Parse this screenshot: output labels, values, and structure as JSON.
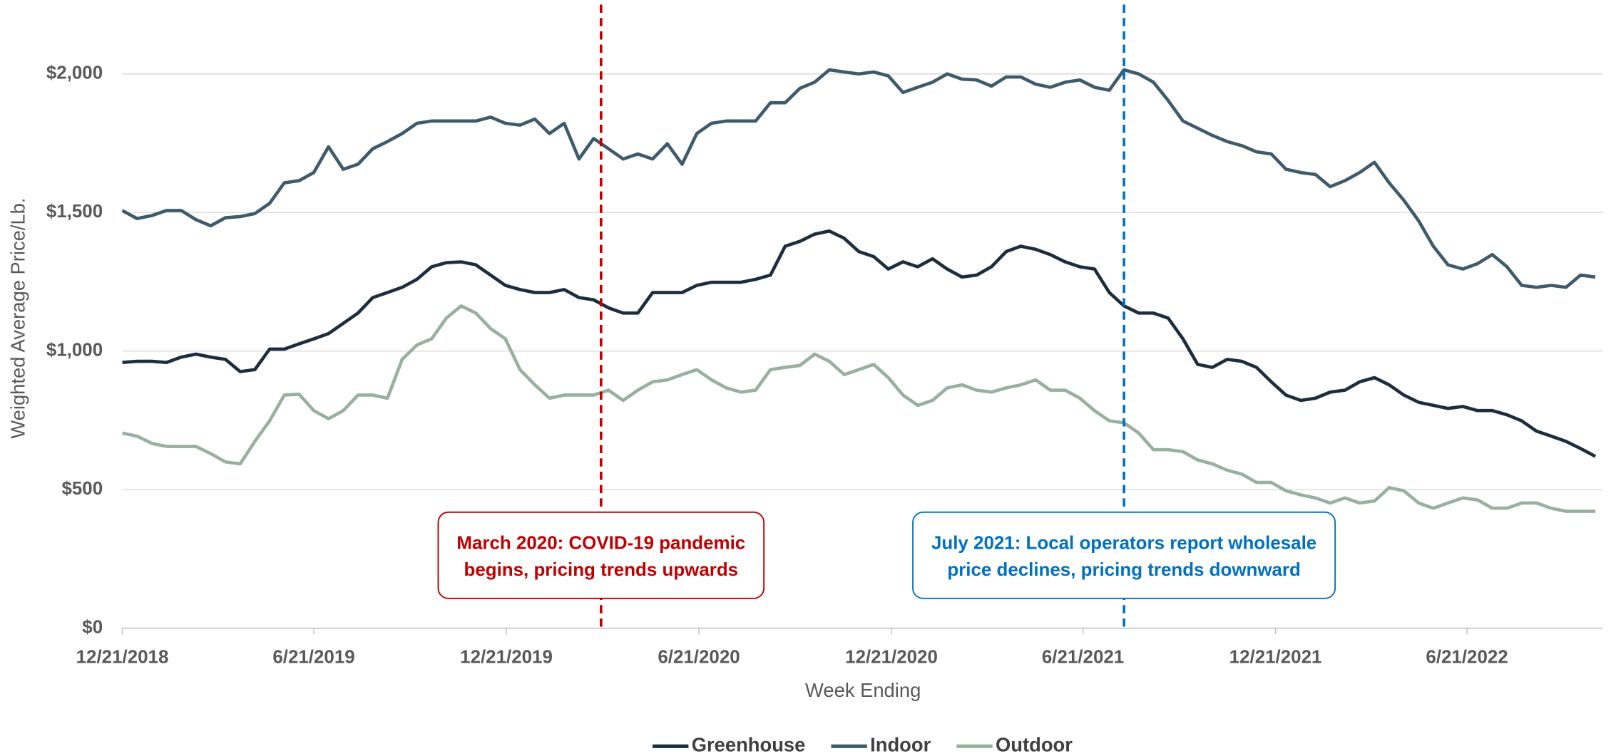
{
  "chart_data": {
    "type": "line",
    "x_label": "Week Ending",
    "y_label": "Weighted Average Price/Lb.",
    "x": [
      "2018-12-21",
      "2019-01-04",
      "2019-01-18",
      "2019-02-01",
      "2019-02-15",
      "2019-03-01",
      "2019-03-15",
      "2019-03-29",
      "2019-04-12",
      "2019-04-26",
      "2019-05-10",
      "2019-05-24",
      "2019-06-07",
      "2019-06-21",
      "2019-07-05",
      "2019-07-19",
      "2019-08-02",
      "2019-08-16",
      "2019-08-30",
      "2019-09-13",
      "2019-09-27",
      "2019-10-11",
      "2019-10-25",
      "2019-11-08",
      "2019-11-22",
      "2019-12-06",
      "2019-12-20",
      "2020-01-03",
      "2020-01-17",
      "2020-01-31",
      "2020-02-14",
      "2020-02-28",
      "2020-03-13",
      "2020-03-27",
      "2020-04-10",
      "2020-04-24",
      "2020-05-08",
      "2020-05-22",
      "2020-06-05",
      "2020-06-19",
      "2020-07-03",
      "2020-07-17",
      "2020-07-31",
      "2020-08-14",
      "2020-08-28",
      "2020-09-11",
      "2020-09-25",
      "2020-10-09",
      "2020-10-23",
      "2020-11-06",
      "2020-11-20",
      "2020-12-04",
      "2020-12-18",
      "2021-01-01",
      "2021-01-15",
      "2021-01-29",
      "2021-02-12",
      "2021-02-26",
      "2021-03-12",
      "2021-03-26",
      "2021-04-09",
      "2021-04-23",
      "2021-05-07",
      "2021-05-21",
      "2021-06-04",
      "2021-06-18",
      "2021-07-02",
      "2021-07-16",
      "2021-07-30",
      "2021-08-13",
      "2021-08-27",
      "2021-09-10",
      "2021-09-24",
      "2021-10-08",
      "2021-10-22",
      "2021-11-05",
      "2021-11-19",
      "2021-12-03",
      "2021-12-17",
      "2021-12-31",
      "2022-01-14",
      "2022-01-28",
      "2022-02-11",
      "2022-02-25",
      "2022-03-11",
      "2022-03-25",
      "2022-04-08",
      "2022-04-22",
      "2022-05-06",
      "2022-05-20",
      "2022-06-03",
      "2022-06-17",
      "2022-07-01",
      "2022-07-15",
      "2022-07-29",
      "2022-08-12",
      "2022-08-26",
      "2022-09-09",
      "2022-09-23",
      "2022-10-07",
      "2022-10-21"
    ],
    "series": [
      {
        "name": "Greenhouse",
        "color": "#1c2e3d",
        "values": [
          959,
          963,
          963,
          959,
          978,
          989,
          978,
          970,
          926,
          933,
          1007,
          1007,
          1026,
          1044,
          1063,
          1100,
          1137,
          1193,
          1211,
          1230,
          1259,
          1304,
          1319,
          1322,
          1311,
          1274,
          1237,
          1222,
          1211,
          1211,
          1222,
          1193,
          1185,
          1156,
          1137,
          1137,
          1211,
          1211,
          1211,
          1237,
          1248,
          1248,
          1248,
          1259,
          1274,
          1378,
          1396,
          1422,
          1433,
          1407,
          1359,
          1341,
          1296,
          1322,
          1304,
          1333,
          1296,
          1267,
          1274,
          1304,
          1359,
          1378,
          1367,
          1348,
          1322,
          1304,
          1296,
          1211,
          1163,
          1137,
          1137,
          1119,
          1044,
          952,
          941,
          970,
          963,
          941,
          889,
          841,
          822,
          830,
          852,
          859,
          889,
          904,
          878,
          841,
          815,
          804,
          793,
          800,
          785,
          785,
          770,
          748,
          711,
          693,
          674,
          648,
          620
        ]
      },
      {
        "name": "Indoor",
        "color": "#3e5a6b",
        "values": [
          1507,
          1478,
          1489,
          1507,
          1507,
          1474,
          1452,
          1481,
          1485,
          1496,
          1533,
          1607,
          1615,
          1644,
          1737,
          1656,
          1674,
          1730,
          1756,
          1785,
          1822,
          1830,
          1830,
          1830,
          1830,
          1844,
          1822,
          1815,
          1837,
          1785,
          1822,
          1693,
          1767,
          1730,
          1693,
          1711,
          1693,
          1748,
          1674,
          1785,
          1822,
          1830,
          1830,
          1830,
          1896,
          1896,
          1948,
          1970,
          2015,
          2007,
          2000,
          2007,
          1993,
          1933,
          1952,
          1970,
          2000,
          1981,
          1978,
          1956,
          1989,
          1989,
          1963,
          1952,
          1970,
          1978,
          1952,
          1941,
          2015,
          2000,
          1970,
          1904,
          1830,
          1804,
          1778,
          1756,
          1741,
          1719,
          1711,
          1656,
          1644,
          1637,
          1593,
          1615,
          1644,
          1681,
          1607,
          1544,
          1470,
          1378,
          1311,
          1296,
          1315,
          1348,
          1304,
          1237,
          1230,
          1237,
          1230,
          1274,
          1267
        ]
      },
      {
        "name": "Outdoor",
        "color": "#98b0a0",
        "values": [
          704,
          693,
          667,
          656,
          656,
          656,
          630,
          600,
          593,
          674,
          748,
          841,
          844,
          785,
          756,
          785,
          841,
          841,
          830,
          970,
          1022,
          1044,
          1119,
          1163,
          1137,
          1081,
          1044,
          933,
          878,
          830,
          841,
          841,
          841,
          859,
          822,
          859,
          889,
          896,
          915,
          933,
          896,
          867,
          852,
          859,
          933,
          941,
          948,
          989,
          963,
          915,
          933,
          952,
          904,
          841,
          804,
          822,
          867,
          878,
          859,
          852,
          867,
          878,
          896,
          859,
          859,
          830,
          785,
          748,
          741,
          704,
          644,
          644,
          637,
          607,
          593,
          570,
          556,
          526,
          526,
          496,
          481,
          470,
          452,
          470,
          452,
          459,
          507,
          496,
          452,
          433,
          452,
          470,
          463,
          433,
          433,
          452,
          452,
          433,
          422,
          422,
          422
        ]
      }
    ],
    "xlim": [
      "2018-12-21",
      "2022-10-28"
    ],
    "xticks": [
      {
        "value": "2018-12-21",
        "label": "12/21/2018"
      },
      {
        "value": "2019-06-21",
        "label": "6/21/2019"
      },
      {
        "value": "2019-12-21",
        "label": "12/21/2019"
      },
      {
        "value": "2020-06-21",
        "label": "6/21/2020"
      },
      {
        "value": "2020-12-21",
        "label": "12/21/2020"
      },
      {
        "value": "2021-06-21",
        "label": "6/21/2021"
      },
      {
        "value": "2021-12-21",
        "label": "12/21/2021"
      },
      {
        "value": "2022-06-21",
        "label": "6/21/2022"
      }
    ],
    "ylim": [
      0,
      2250
    ],
    "yticks": [
      {
        "value": 0,
        "label": "$0"
      },
      {
        "value": 500,
        "label": "$500"
      },
      {
        "value": 1000,
        "label": "$1,000"
      },
      {
        "value": 1500,
        "label": "$1,500"
      },
      {
        "value": 2000,
        "label": "$2,000"
      }
    ],
    "grid": true,
    "legend": "bottom",
    "annotations": [
      {
        "x": "2020-03-20",
        "color": "#c00000",
        "lines": [
          "March 2020: COVID-19 pandemic",
          "begins, pricing trends upwards"
        ]
      },
      {
        "x": "2021-07-30",
        "color": "#0070c0",
        "lines": [
          "July 2021: Local operators report wholesale",
          "price declines, pricing trends downward"
        ]
      }
    ]
  }
}
